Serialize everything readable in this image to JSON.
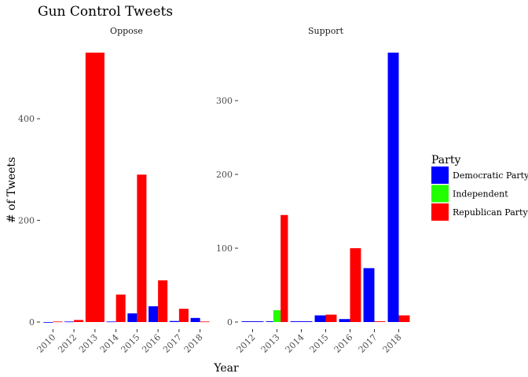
{
  "chart_data": {
    "type": "bar",
    "title": "Gun Control Tweets",
    "xlabel": "Year",
    "ylabel": "# of Tweets",
    "grid": false,
    "legend": {
      "title": "Party",
      "position": "right",
      "entries": [
        {
          "name": "Democratic Party",
          "color": "#0000ff"
        },
        {
          "name": "Independent",
          "color": "#22ff00"
        },
        {
          "name": "Republican Party",
          "color": "#ff0000"
        }
      ]
    },
    "facets": [
      {
        "label": "Oppose",
        "ylim": [
          0,
          530
        ],
        "yticks": [
          0,
          200,
          400
        ],
        "categories": [
          "2010",
          "2012",
          "2013",
          "2014",
          "2015",
          "2016",
          "2017",
          "2018"
        ],
        "bars": [
          {
            "category": "2010",
            "party": "Democratic Party",
            "value": 0
          },
          {
            "category": "2010",
            "party": "Republican Party",
            "value": 1
          },
          {
            "category": "2012",
            "party": "Democratic Party",
            "value": 1
          },
          {
            "category": "2012",
            "party": "Republican Party",
            "value": 4
          },
          {
            "category": "2013",
            "party": "Republican Party",
            "value": 530
          },
          {
            "category": "2014",
            "party": "Democratic Party",
            "value": 1
          },
          {
            "category": "2014",
            "party": "Republican Party",
            "value": 54
          },
          {
            "category": "2015",
            "party": "Democratic Party",
            "value": 17
          },
          {
            "category": "2015",
            "party": "Republican Party",
            "value": 290
          },
          {
            "category": "2016",
            "party": "Democratic Party",
            "value": 31
          },
          {
            "category": "2016",
            "party": "Republican Party",
            "value": 82
          },
          {
            "category": "2017",
            "party": "Democratic Party",
            "value": 2
          },
          {
            "category": "2017",
            "party": "Republican Party",
            "value": 26
          },
          {
            "category": "2018",
            "party": "Democratic Party",
            "value": 8
          },
          {
            "category": "2018",
            "party": "Republican Party",
            "value": 1
          }
        ]
      },
      {
        "label": "Support",
        "ylim": [
          0,
          365
        ],
        "yticks": [
          0,
          100,
          200,
          300
        ],
        "categories": [
          "2012",
          "2013",
          "2014",
          "2015",
          "2016",
          "2017",
          "2018"
        ],
        "bars": [
          {
            "category": "2012",
            "party": "Democratic Party",
            "value": 1
          },
          {
            "category": "2013",
            "party": "Democratic Party",
            "value": 1
          },
          {
            "category": "2013",
            "party": "Independent",
            "value": 16
          },
          {
            "category": "2013",
            "party": "Republican Party",
            "value": 145
          },
          {
            "category": "2014",
            "party": "Democratic Party",
            "value": 1
          },
          {
            "category": "2015",
            "party": "Democratic Party",
            "value": 9
          },
          {
            "category": "2015",
            "party": "Republican Party",
            "value": 10
          },
          {
            "category": "2016",
            "party": "Democratic Party",
            "value": 4
          },
          {
            "category": "2016",
            "party": "Republican Party",
            "value": 100
          },
          {
            "category": "2017",
            "party": "Democratic Party",
            "value": 73
          },
          {
            "category": "2017",
            "party": "Republican Party",
            "value": 1
          },
          {
            "category": "2018",
            "party": "Democratic Party",
            "value": 365
          },
          {
            "category": "2018",
            "party": "Republican Party",
            "value": 9
          }
        ]
      }
    ]
  }
}
